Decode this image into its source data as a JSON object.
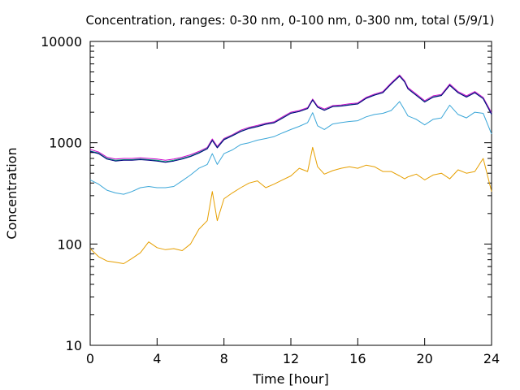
{
  "chart_data": {
    "type": "line",
    "title": "Concentration, ranges: 0-30 nm, 0-100 nm, 0-300 nm, total (5/9/1)",
    "xlabel": "Time [hour]",
    "ylabel": "Concentration",
    "xlim": [
      0,
      24
    ],
    "ylim": [
      10,
      10000
    ],
    "yscale": "log",
    "grid": false,
    "legend": "none",
    "x_ticks": [
      0,
      4,
      8,
      12,
      16,
      20,
      24
    ],
    "x_tick_labels": [
      "0",
      "4",
      "8",
      "12",
      "16",
      "20",
      "24"
    ],
    "y_ticks": [
      10,
      100,
      1000,
      10000
    ],
    "y_tick_labels": [
      "10",
      "100",
      "1000",
      "10000"
    ],
    "x": [
      0,
      0.5,
      1,
      1.5,
      2,
      2.5,
      3,
      3.5,
      4,
      4.5,
      5,
      5.5,
      6,
      6.5,
      7,
      7.3,
      7.6,
      8,
      8.5,
      9,
      9.5,
      10,
      10.5,
      11,
      11.5,
      12,
      12.5,
      13,
      13.3,
      13.6,
      14,
      14.5,
      15,
      15.5,
      16,
      16.5,
      17,
      17.5,
      18,
      18.5,
      18.8,
      19,
      19.5,
      20,
      20.5,
      21,
      21.5,
      22,
      22.5,
      23,
      23.5,
      24
    ],
    "series": [
      {
        "color": "#cc00cc",
        "values": [
          860,
          810,
          720,
          690,
          700,
          700,
          710,
          700,
          690,
          670,
          690,
          720,
          760,
          820,
          900,
          1090,
          920,
          1100,
          1200,
          1330,
          1420,
          1480,
          1560,
          1610,
          1800,
          2000,
          2080,
          2220,
          2700,
          2300,
          2150,
          2330,
          2360,
          2420,
          2470,
          2800,
          3020,
          3200,
          3900,
          4660,
          4100,
          3500,
          3020,
          2600,
          2900,
          3000,
          3800,
          3200,
          2900,
          3200,
          2800,
          1980
        ]
      },
      {
        "color": "#009e73",
        "values": [
          830,
          790,
          700,
          670,
          680,
          680,
          690,
          680,
          670,
          650,
          670,
          700,
          740,
          800,
          880,
          1060,
          900,
          1080,
          1180,
          1300,
          1390,
          1450,
          1530,
          1580,
          1760,
          1960,
          2040,
          2180,
          2650,
          2250,
          2100,
          2280,
          2310,
          2370,
          2420,
          2750,
          2960,
          3130,
          3820,
          4560,
          4000,
          3420,
          2950,
          2540,
          2830,
          2940,
          3700,
          3130,
          2840,
          3130,
          2740,
          1920
        ]
      },
      {
        "color": "#000080",
        "values": [
          820,
          780,
          690,
          660,
          670,
          670,
          680,
          670,
          660,
          640,
          660,
          690,
          730,
          790,
          870,
          1050,
          890,
          1070,
          1170,
          1290,
          1380,
          1440,
          1520,
          1570,
          1750,
          1950,
          2030,
          2170,
          2640,
          2240,
          2090,
          2270,
          2300,
          2360,
          2410,
          2740,
          2950,
          3120,
          3800,
          4540,
          3980,
          3400,
          2930,
          2520,
          2810,
          2920,
          3680,
          3110,
          2820,
          3110,
          2720,
          1900
        ]
      },
      {
        "color": "#3aa6d8",
        "values": [
          430,
          390,
          340,
          320,
          310,
          330,
          360,
          370,
          360,
          360,
          370,
          420,
          480,
          560,
          610,
          780,
          610,
          780,
          850,
          960,
          1000,
          1060,
          1100,
          1150,
          1250,
          1350,
          1450,
          1580,
          1980,
          1470,
          1350,
          1530,
          1580,
          1620,
          1650,
          1800,
          1900,
          1950,
          2080,
          2550,
          2100,
          1840,
          1700,
          1500,
          1700,
          1760,
          2350,
          1900,
          1760,
          2000,
          1950,
          1220
        ]
      },
      {
        "color": "#e69f00",
        "values": [
          90,
          75,
          68,
          66,
          64,
          72,
          82,
          105,
          92,
          88,
          90,
          86,
          100,
          140,
          170,
          330,
          170,
          280,
          320,
          360,
          400,
          420,
          360,
          390,
          430,
          470,
          560,
          520,
          900,
          580,
          490,
          530,
          560,
          580,
          560,
          600,
          580,
          520,
          520,
          470,
          440,
          460,
          490,
          430,
          480,
          500,
          440,
          540,
          500,
          520,
          700,
          330
        ]
      }
    ]
  }
}
